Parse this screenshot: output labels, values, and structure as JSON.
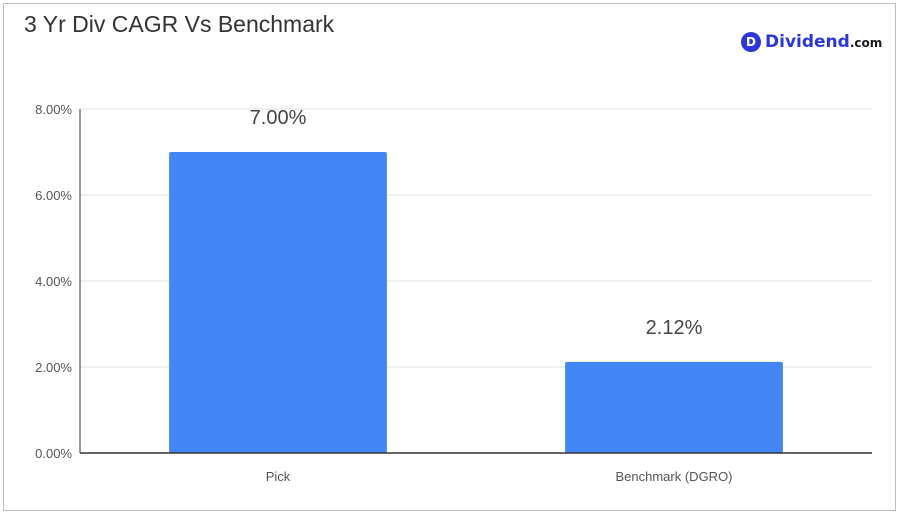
{
  "chart_data": {
    "type": "bar",
    "title": "3 Yr Div CAGR Vs Benchmark",
    "categories": [
      "Pick",
      "Benchmark (DGRO)"
    ],
    "values": [
      7.0,
      2.12
    ],
    "data_labels": [
      "7.00%",
      "2.12%"
    ],
    "yticks": [
      "0.00%",
      "2.00%",
      "4.00%",
      "6.00%",
      "8.00%"
    ],
    "ytick_values": [
      0,
      2,
      4,
      6,
      8
    ],
    "ylim": [
      0,
      8
    ],
    "xlabel": "",
    "ylabel": "",
    "grid": true,
    "legend": "none",
    "bar_color": "#4285f4"
  },
  "brand": {
    "badge_letter": "D",
    "name": "Dividend",
    "tld": ".com",
    "color": "#2b38d6"
  }
}
